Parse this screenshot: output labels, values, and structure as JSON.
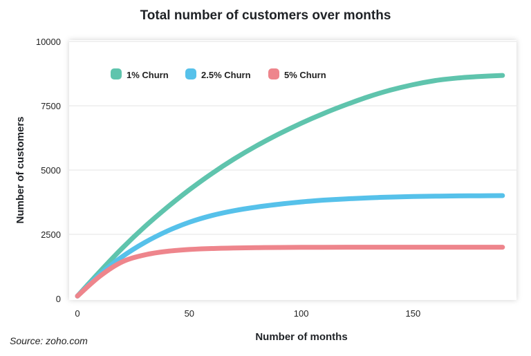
{
  "chart_data": {
    "type": "line",
    "title": "Total number of customers over months",
    "xlabel": "Number of months",
    "ylabel": "Number of customers",
    "xlim": [
      0,
      190
    ],
    "ylim": [
      0,
      10000
    ],
    "xticks": [
      0,
      50,
      100,
      150
    ],
    "yticks": [
      0,
      2500,
      5000,
      7500,
      10000
    ],
    "grid": "horizontal",
    "legend": "top-left",
    "series": [
      {
        "name": "1% Churn",
        "color": "#5fc4ad",
        "x": [
          0,
          10,
          20,
          30,
          40,
          50,
          60,
          70,
          80,
          90,
          100,
          110,
          120,
          130,
          140,
          150,
          160,
          170,
          180,
          190
        ],
        "y": [
          100,
          1050,
          1960,
          2790,
          3540,
          4230,
          4860,
          5430,
          5940,
          6400,
          6820,
          7200,
          7540,
          7850,
          8110,
          8320,
          8480,
          8580,
          8640,
          8680
        ]
      },
      {
        "name": "2.5% Churn",
        "color": "#56c1ea",
        "x": [
          0,
          10,
          20,
          30,
          40,
          50,
          60,
          70,
          80,
          90,
          100,
          110,
          120,
          130,
          140,
          150,
          160,
          170,
          180,
          190
        ],
        "y": [
          100,
          940,
          1630,
          2180,
          2620,
          2970,
          3230,
          3420,
          3560,
          3670,
          3760,
          3830,
          3880,
          3920,
          3950,
          3970,
          3985,
          3995,
          4000,
          4005
        ]
      },
      {
        "name": "5% Churn",
        "color": "#ee858c",
        "x": [
          0,
          10,
          20,
          30,
          40,
          50,
          60,
          70,
          80,
          90,
          100,
          110,
          120,
          130,
          140,
          150,
          160,
          170,
          180,
          190
        ],
        "y": [
          100,
          870,
          1430,
          1700,
          1840,
          1910,
          1950,
          1970,
          1985,
          1990,
          1995,
          1998,
          2000,
          2000,
          2000,
          2000,
          2000,
          2000,
          2000,
          2000
        ]
      }
    ]
  },
  "source": "Source: zoho.com"
}
